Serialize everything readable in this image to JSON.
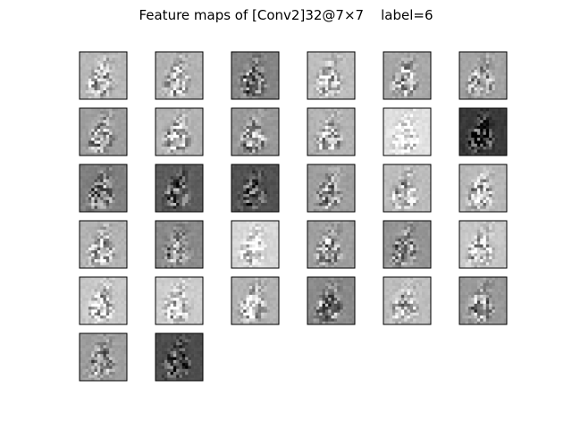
{
  "figure": {
    "title": "Feature maps of [Conv2]32@7×7    label=6"
  },
  "grid": {
    "columns": 6,
    "map_count": 32
  },
  "maps": [
    {
      "bg": 0.72,
      "contrast": 1.0,
      "seed": 11
    },
    {
      "bg": 0.7,
      "contrast": 1.0,
      "seed": 12
    },
    {
      "bg": 0.52,
      "contrast": 1.0,
      "seed": 13
    },
    {
      "bg": 0.74,
      "contrast": 1.0,
      "seed": 14
    },
    {
      "bg": 0.66,
      "contrast": 1.0,
      "seed": 15
    },
    {
      "bg": 0.64,
      "contrast": 1.0,
      "seed": 16
    },
    {
      "bg": 0.62,
      "contrast": 1.0,
      "seed": 17
    },
    {
      "bg": 0.7,
      "contrast": 1.0,
      "seed": 18
    },
    {
      "bg": 0.6,
      "contrast": 1.0,
      "seed": 19
    },
    {
      "bg": 0.7,
      "contrast": 1.0,
      "seed": 20
    },
    {
      "bg": 0.88,
      "contrast": 0.8,
      "seed": 21
    },
    {
      "bg": 0.22,
      "contrast": 1.1,
      "seed": 22
    },
    {
      "bg": 0.5,
      "contrast": 1.0,
      "seed": 23
    },
    {
      "bg": 0.36,
      "contrast": 1.0,
      "seed": 24
    },
    {
      "bg": 0.32,
      "contrast": 1.0,
      "seed": 25
    },
    {
      "bg": 0.62,
      "contrast": 1.0,
      "seed": 26
    },
    {
      "bg": 0.74,
      "contrast": 1.0,
      "seed": 27
    },
    {
      "bg": 0.72,
      "contrast": 1.0,
      "seed": 28
    },
    {
      "bg": 0.7,
      "contrast": 1.0,
      "seed": 29
    },
    {
      "bg": 0.54,
      "contrast": 1.0,
      "seed": 30
    },
    {
      "bg": 0.84,
      "contrast": 0.8,
      "seed": 31
    },
    {
      "bg": 0.62,
      "contrast": 1.0,
      "seed": 32
    },
    {
      "bg": 0.58,
      "contrast": 1.0,
      "seed": 33
    },
    {
      "bg": 0.78,
      "contrast": 1.0,
      "seed": 34
    },
    {
      "bg": 0.78,
      "contrast": 1.0,
      "seed": 35
    },
    {
      "bg": 0.8,
      "contrast": 1.0,
      "seed": 36
    },
    {
      "bg": 0.7,
      "contrast": 1.0,
      "seed": 37
    },
    {
      "bg": 0.54,
      "contrast": 1.0,
      "seed": 38
    },
    {
      "bg": 0.74,
      "contrast": 1.0,
      "seed": 39
    },
    {
      "bg": 0.6,
      "contrast": 1.0,
      "seed": 40
    },
    {
      "bg": 0.62,
      "contrast": 1.0,
      "seed": 41
    },
    {
      "bg": 0.3,
      "contrast": 1.0,
      "seed": 42
    }
  ]
}
